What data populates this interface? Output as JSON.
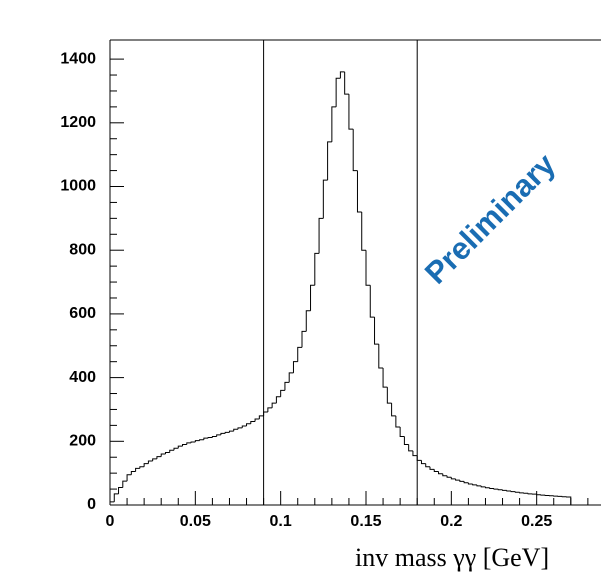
{
  "chart_data": {
    "type": "histogram",
    "xlabel": "inv mass γγ [GeV]",
    "annotation": "Preliminary",
    "annotation_color": "#1a6db3",
    "color": "#000000",
    "bins": [
      0,
      0.0025,
      0.005,
      0.0075,
      0.01,
      0.0125,
      0.015,
      0.0175,
      0.02,
      0.0225,
      0.025,
      0.0275,
      0.03,
      0.0325,
      0.035,
      0.0375,
      0.04,
      0.0425,
      0.045,
      0.0475,
      0.05,
      0.0525,
      0.055,
      0.0575,
      0.06,
      0.0625,
      0.065,
      0.0675,
      0.07,
      0.0725,
      0.075,
      0.0775,
      0.08,
      0.0825,
      0.085,
      0.0875,
      0.09,
      0.0925,
      0.095,
      0.0975,
      0.1,
      0.1025,
      0.105,
      0.1075,
      0.11,
      0.1125,
      0.115,
      0.1175,
      0.12,
      0.1225,
      0.125,
      0.1275,
      0.13,
      0.1325,
      0.135,
      0.1375,
      0.14,
      0.1425,
      0.145,
      0.1475,
      0.15,
      0.1525,
      0.155,
      0.1575,
      0.16,
      0.1625,
      0.165,
      0.1675,
      0.17,
      0.1725,
      0.175,
      0.1775,
      0.18,
      0.1825,
      0.185,
      0.1875,
      0.19,
      0.1925,
      0.195,
      0.1975,
      0.2,
      0.2025,
      0.205,
      0.2075,
      0.21,
      0.2125,
      0.215,
      0.2175,
      0.22,
      0.2225,
      0.225,
      0.2275,
      0.23,
      0.2325,
      0.235,
      0.2375,
      0.24,
      0.2425,
      0.245,
      0.2475,
      0.25,
      0.2525,
      0.255,
      0.2575,
      0.26,
      0.2625,
      0.265,
      0.2675,
      0.27
    ],
    "values": [
      10,
      35,
      55,
      75,
      95,
      105,
      115,
      120,
      130,
      138,
      145,
      152,
      160,
      165,
      172,
      178,
      185,
      190,
      195,
      198,
      202,
      205,
      210,
      212,
      215,
      220,
      225,
      228,
      232,
      238,
      242,
      248,
      255,
      262,
      270,
      280,
      292,
      305,
      320,
      340,
      360,
      385,
      415,
      450,
      495,
      545,
      610,
      690,
      790,
      900,
      1020,
      1140,
      1250,
      1340,
      1360,
      1290,
      1180,
      1050,
      920,
      800,
      690,
      590,
      505,
      430,
      370,
      320,
      280,
      245,
      215,
      190,
      170,
      155,
      140,
      130,
      120,
      112,
      105,
      98,
      92,
      87,
      82,
      78,
      74,
      70,
      66,
      63,
      60,
      57,
      54,
      52,
      50,
      48,
      46,
      44,
      42,
      40,
      38,
      37,
      35,
      34,
      32,
      31,
      30,
      29,
      28,
      27,
      26,
      25
    ],
    "vlines": [
      0.09,
      0.18
    ],
    "xlim": [
      0,
      0.3
    ],
    "xticks": [
      0,
      0.05,
      0.1,
      0.15,
      0.2,
      0.25
    ],
    "ylim": [
      0,
      1460
    ],
    "yticks": [
      0,
      200,
      400,
      600,
      800,
      1000,
      1200,
      1400
    ]
  }
}
